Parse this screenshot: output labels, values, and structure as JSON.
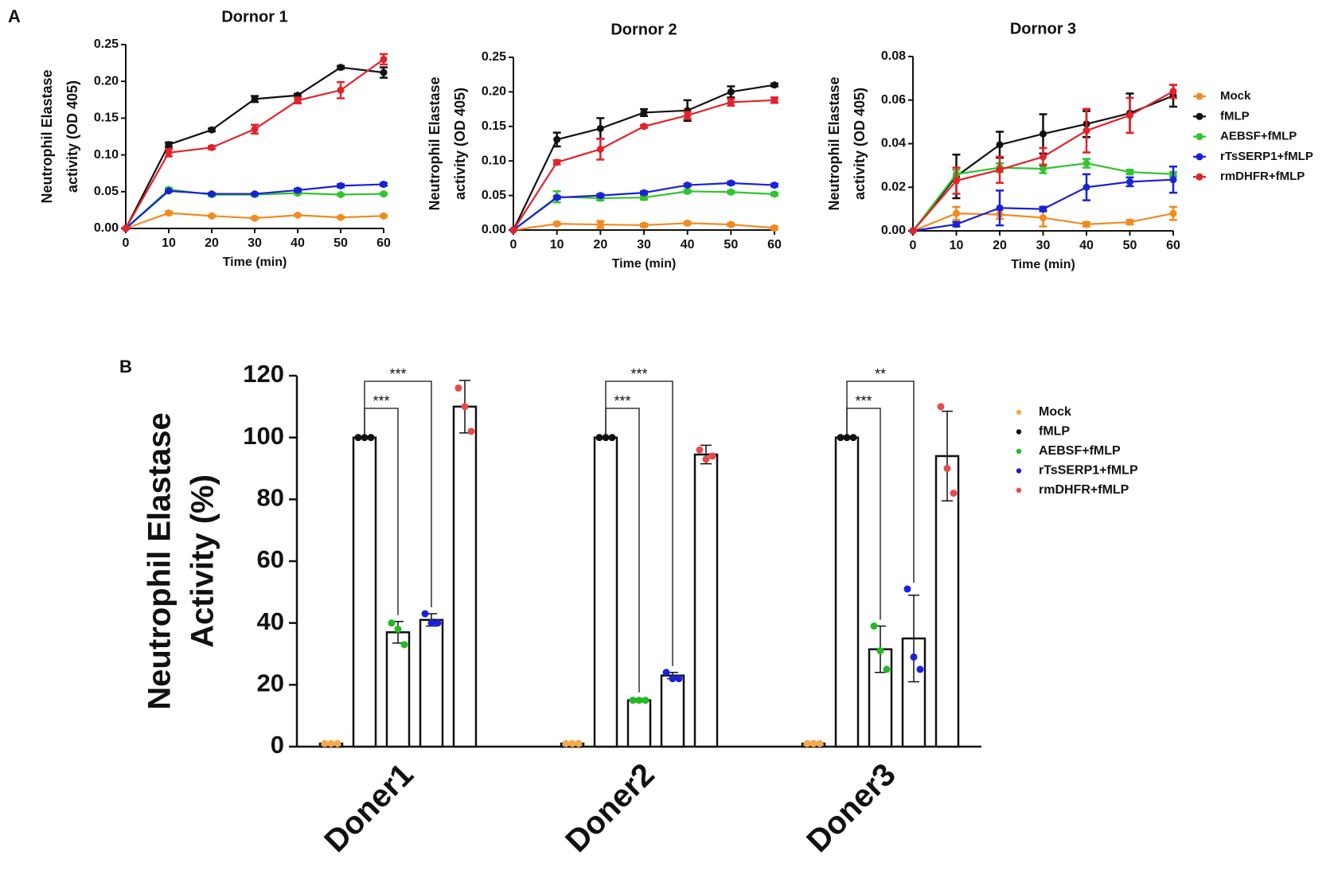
{
  "panels": [
    "A",
    "B"
  ],
  "chart_data": [
    {
      "type": "line",
      "title": "Dornor 1",
      "xlabel": "Time (min)",
      "ylabel_lines": [
        "Neutrophil Elastase",
        "activity (OD 405)"
      ],
      "x": [
        0,
        10,
        20,
        30,
        40,
        50,
        60
      ],
      "xlim": [
        0,
        60
      ],
      "xticks": [
        0,
        10,
        20,
        30,
        40,
        50,
        60
      ],
      "ylim": [
        0,
        0.25
      ],
      "yticks": [
        {
          "value": 0,
          "label": "0.00"
        },
        {
          "value": 0.05,
          "label": "0.05"
        },
        {
          "value": 0.1,
          "label": "0.10"
        },
        {
          "value": 0.15,
          "label": "0.15"
        },
        {
          "value": 0.2,
          "label": "0.20"
        },
        {
          "value": 0.25,
          "label": "0.25"
        }
      ],
      "series": [
        {
          "name": "Mock",
          "color": "#f28a1e",
          "values": [
            0,
            0.021,
            0.017,
            0.014,
            0.018,
            0.015,
            0.017
          ],
          "errors": [
            0,
            0.002,
            0.001,
            0.001,
            0.001,
            0.001,
            0.001
          ]
        },
        {
          "name": "fMLP",
          "color": "#111111",
          "values": [
            0,
            0.114,
            0.134,
            0.176,
            0.181,
            0.219,
            0.212
          ],
          "errors": [
            0,
            0.003,
            0.002,
            0.004,
            0.002,
            0.002,
            0.007
          ]
        },
        {
          "name": "AEBSF+fMLP",
          "color": "#2fc52f",
          "values": [
            0,
            0.053,
            0.046,
            0.046,
            0.048,
            0.046,
            0.047
          ],
          "errors": [
            0,
            0.002,
            0.002,
            0.002,
            0.001,
            0.001,
            0.001
          ]
        },
        {
          "name": "rTsSERP1+fMLP",
          "color": "#1a22d8",
          "values": [
            0,
            0.051,
            0.047,
            0.047,
            0.052,
            0.058,
            0.06
          ],
          "errors": [
            0,
            0.001,
            0.001,
            0.001,
            0.002,
            0.002,
            0.002
          ]
        },
        {
          "name": "rmDHFR+fMLP",
          "color": "#e5212b",
          "values": [
            0,
            0.103,
            0.11,
            0.135,
            0.174,
            0.188,
            0.23
          ],
          "errors": [
            0,
            0.005,
            0.002,
            0.006,
            0.004,
            0.011,
            0.007
          ]
        }
      ]
    },
    {
      "type": "line",
      "title": "Dornor 2",
      "xlabel": "Time (min)",
      "ylabel_lines": [
        "Neutrophil Elastase",
        "activity (OD 405)"
      ],
      "x": [
        0,
        10,
        20,
        30,
        40,
        50,
        60
      ],
      "xlim": [
        0,
        60
      ],
      "xticks": [
        0,
        10,
        20,
        30,
        40,
        50,
        60
      ],
      "ylim": [
        0,
        0.25
      ],
      "yticks": [
        {
          "value": 0,
          "label": "0.00"
        },
        {
          "value": 0.05,
          "label": "0.05"
        },
        {
          "value": 0.1,
          "label": "0.10"
        },
        {
          "value": 0.15,
          "label": "0.15"
        },
        {
          "value": 0.2,
          "label": "0.20"
        },
        {
          "value": 0.25,
          "label": "0.25"
        }
      ],
      "series": [
        {
          "name": "Mock",
          "color": "#f28a1e",
          "values": [
            0,
            0.009,
            0.008,
            0.007,
            0.01,
            0.008,
            0.003
          ],
          "errors": [
            0,
            0.002,
            0.005,
            0.002,
            0.002,
            0.002,
            0.002
          ]
        },
        {
          "name": "fMLP",
          "color": "#111111",
          "values": [
            0,
            0.131,
            0.147,
            0.17,
            0.173,
            0.2,
            0.21
          ],
          "errors": [
            0,
            0.01,
            0.015,
            0.005,
            0.015,
            0.008,
            0.002
          ]
        },
        {
          "name": "AEBSF+fMLP",
          "color": "#2fc52f",
          "values": [
            0,
            0.048,
            0.046,
            0.047,
            0.056,
            0.055,
            0.052
          ],
          "errors": [
            0,
            0.008,
            0.003,
            0.003,
            0.002,
            0.002,
            0.002
          ]
        },
        {
          "name": "rTsSERP1+fMLP",
          "color": "#1a22d8",
          "values": [
            0,
            0.047,
            0.05,
            0.054,
            0.065,
            0.068,
            0.065
          ],
          "errors": [
            0,
            0.002,
            0.002,
            0.002,
            0.002,
            0.002,
            0.002
          ]
        },
        {
          "name": "rmDHFR+fMLP",
          "color": "#e5212b",
          "values": [
            0,
            0.098,
            0.117,
            0.15,
            0.166,
            0.185,
            0.188
          ],
          "errors": [
            0,
            0.003,
            0.015,
            0.002,
            0.005,
            0.005,
            0.004
          ]
        }
      ]
    },
    {
      "type": "line",
      "title": "Dornor 3",
      "xlabel": "Time (min)",
      "ylabel_lines": [
        "Neutrophil Elastase",
        "activity (OD 405)"
      ],
      "legend": "right",
      "x": [
        0,
        10,
        20,
        30,
        40,
        50,
        60
      ],
      "xlim": [
        0,
        60
      ],
      "xticks": [
        0,
        10,
        20,
        30,
        40,
        50,
        60
      ],
      "ylim": [
        0,
        0.08
      ],
      "yticks": [
        {
          "value": 0,
          "label": "0.00"
        },
        {
          "value": 0.02,
          "label": "0.02"
        },
        {
          "value": 0.04,
          "label": "0.04"
        },
        {
          "value": 0.06,
          "label": "0.06"
        },
        {
          "value": 0.08,
          "label": "0.08"
        }
      ],
      "series": [
        {
          "name": "Mock",
          "color": "#f28a1e",
          "values": [
            0,
            0.008,
            0.0075,
            0.006,
            0.003,
            0.004,
            0.008
          ],
          "errors": [
            0,
            0.003,
            0.002,
            0.004,
            0.001,
            0.001,
            0.003
          ]
        },
        {
          "name": "fMLP",
          "color": "#111111",
          "values": [
            0,
            0.025,
            0.0395,
            0.0445,
            0.049,
            0.054,
            0.062
          ],
          "errors": [
            0,
            0.01,
            0.006,
            0.009,
            0.006,
            0.009,
            0.005
          ]
        },
        {
          "name": "AEBSF+fMLP",
          "color": "#2fc52f",
          "values": [
            0,
            0.026,
            0.029,
            0.0285,
            0.031,
            0.027,
            0.026
          ],
          "errors": [
            0,
            0.002,
            0.002,
            0.002,
            0.002,
            0.001,
            0.001
          ]
        },
        {
          "name": "rTsSERP1+fMLP",
          "color": "#1a22d8",
          "values": [
            0,
            0.003,
            0.0105,
            0.01,
            0.02,
            0.0225,
            0.0235
          ],
          "errors": [
            0,
            0.001,
            0.008,
            0.001,
            0.006,
            0.002,
            0.006
          ]
        },
        {
          "name": "rmDHFR+fMLP",
          "color": "#e5212b",
          "values": [
            0,
            0.023,
            0.028,
            0.034,
            0.046,
            0.053,
            0.064
          ],
          "errors": [
            0,
            0.006,
            0.006,
            0.004,
            0.01,
            0.008,
            0.003
          ]
        }
      ]
    },
    {
      "type": "bar",
      "categories": [
        "Doner1",
        "Doner2",
        "Doner3"
      ],
      "ylabel_lines": [
        "Neutrophil Elastase",
        "Activity (%)"
      ],
      "legend": "right",
      "ylim": [
        0,
        120
      ],
      "yticks": [
        0,
        20,
        40,
        60,
        80,
        100,
        120
      ],
      "series": [
        {
          "name": "Mock",
          "color": "#f5a94a",
          "values": [
            1,
            1,
            1
          ],
          "errors": [
            0,
            0,
            0
          ],
          "points": [
            [
              1,
              1,
              1
            ],
            [
              1,
              1,
              1
            ],
            [
              1,
              1,
              1
            ]
          ]
        },
        {
          "name": "fMLP",
          "color": "#111111",
          "values": [
            100,
            100,
            100
          ],
          "errors": [
            0,
            0,
            0
          ],
          "points": [
            [
              100,
              100,
              100
            ],
            [
              100,
              100,
              100
            ],
            [
              100,
              100,
              100
            ]
          ]
        },
        {
          "name": "AEBSF+fMLP",
          "color": "#22bb22",
          "values": [
            37,
            15,
            31.5
          ],
          "errors": [
            3.5,
            0.5,
            7.5
          ],
          "points": [
            [
              40,
              38,
              33
            ],
            [
              15,
              15,
              15
            ],
            [
              39,
              31,
              25
            ]
          ],
          "significance": [
            "***",
            "***",
            "***"
          ]
        },
        {
          "name": "rTsSERP1+fMLP",
          "color": "#1a22d8",
          "values": [
            41,
            23,
            35
          ],
          "errors": [
            2,
            1,
            14
          ],
          "points": [
            [
              43,
              40,
              40
            ],
            [
              24,
              22,
              22
            ],
            [
              51,
              29,
              25
            ]
          ],
          "significance": [
            "***",
            "***",
            "**"
          ]
        },
        {
          "name": "rmDHFR+fMLP",
          "color": "#e44b4b",
          "values": [
            110,
            94.5,
            94
          ],
          "errors": [
            8.5,
            3,
            14.5
          ],
          "points": [
            [
              116,
              110,
              102
            ],
            [
              96,
              93,
              94
            ],
            [
              110,
              90,
              82
            ]
          ]
        }
      ]
    }
  ]
}
